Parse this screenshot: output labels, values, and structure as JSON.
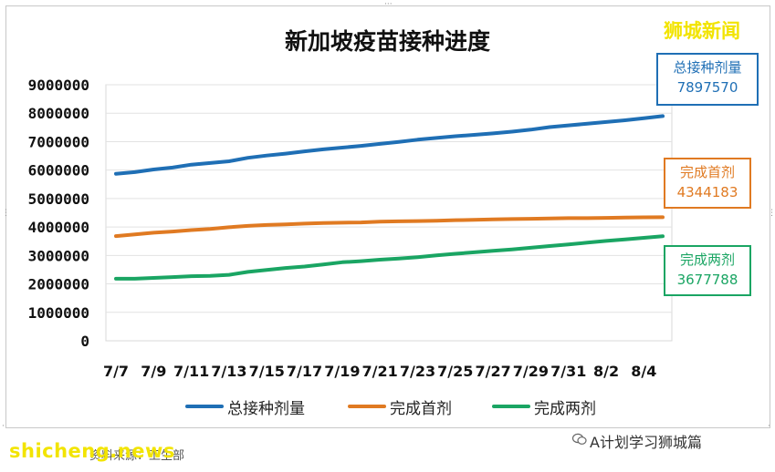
{
  "chart_data": {
    "type": "line",
    "title": "新加坡疫苗接种进度",
    "xlabel": "",
    "ylabel": "",
    "ylim": [
      0,
      9000000
    ],
    "yticks": [
      "0",
      "1000000",
      "2000000",
      "3000000",
      "4000000",
      "5000000",
      "6000000",
      "7000000",
      "8000000",
      "9000000"
    ],
    "xticks": [
      "7/7",
      "7/9",
      "7/11",
      "7/13",
      "7/15",
      "7/17",
      "7/19",
      "7/21",
      "7/23",
      "7/25",
      "7/27",
      "7/29",
      "7/31",
      "8/2",
      "8/4"
    ],
    "x": [
      "7/7",
      "7/8",
      "7/9",
      "7/10",
      "7/11",
      "7/12",
      "7/13",
      "7/14",
      "7/15",
      "7/16",
      "7/17",
      "7/18",
      "7/19",
      "7/20",
      "7/21",
      "7/22",
      "7/23",
      "7/24",
      "7/25",
      "7/26",
      "7/27",
      "7/28",
      "7/29",
      "7/30",
      "7/31",
      "8/1",
      "8/2",
      "8/3",
      "8/4",
      "8/5"
    ],
    "grid": true,
    "legend": "bottom",
    "series": [
      {
        "name": "总接种剂量",
        "color": "#1f6fb5",
        "values": [
          5870000,
          5930000,
          6020000,
          6090000,
          6190000,
          6250000,
          6310000,
          6430000,
          6510000,
          6580000,
          6660000,
          6730000,
          6790000,
          6850000,
          6920000,
          6990000,
          7070000,
          7130000,
          7190000,
          7240000,
          7290000,
          7350000,
          7420000,
          7510000,
          7570000,
          7630000,
          7690000,
          7750000,
          7820000,
          7897570
        ]
      },
      {
        "name": "完成首剂",
        "color": "#e07a22",
        "values": [
          3680000,
          3740000,
          3800000,
          3840000,
          3890000,
          3930000,
          3990000,
          4040000,
          4070000,
          4090000,
          4120000,
          4140000,
          4150000,
          4160000,
          4190000,
          4200000,
          4210000,
          4220000,
          4240000,
          4250000,
          4270000,
          4280000,
          4290000,
          4300000,
          4310000,
          4310000,
          4320000,
          4330000,
          4340000,
          4344183
        ]
      },
      {
        "name": "完成两剂",
        "color": "#1aa563",
        "values": [
          2180000,
          2180000,
          2210000,
          2240000,
          2270000,
          2280000,
          2320000,
          2420000,
          2490000,
          2560000,
          2610000,
          2680000,
          2760000,
          2800000,
          2850000,
          2890000,
          2940000,
          3000000,
          3060000,
          3110000,
          3160000,
          3210000,
          3270000,
          3330000,
          3390000,
          3450000,
          3510000,
          3560000,
          3620000,
          3677788
        ]
      }
    ],
    "callouts": [
      {
        "label": "总接种剂量",
        "value": "7897570"
      },
      {
        "label": "完成首剂",
        "value": "4344183"
      },
      {
        "label": "完成两剂",
        "value": "3677788"
      }
    ]
  },
  "watermarks": {
    "brand": "狮城新闻",
    "footer": "shicheng.news",
    "source_text": "资料来源：卫生部",
    "account": "A计划学习狮城篇"
  },
  "icons": {
    "account_icon": "wechat-icon"
  }
}
